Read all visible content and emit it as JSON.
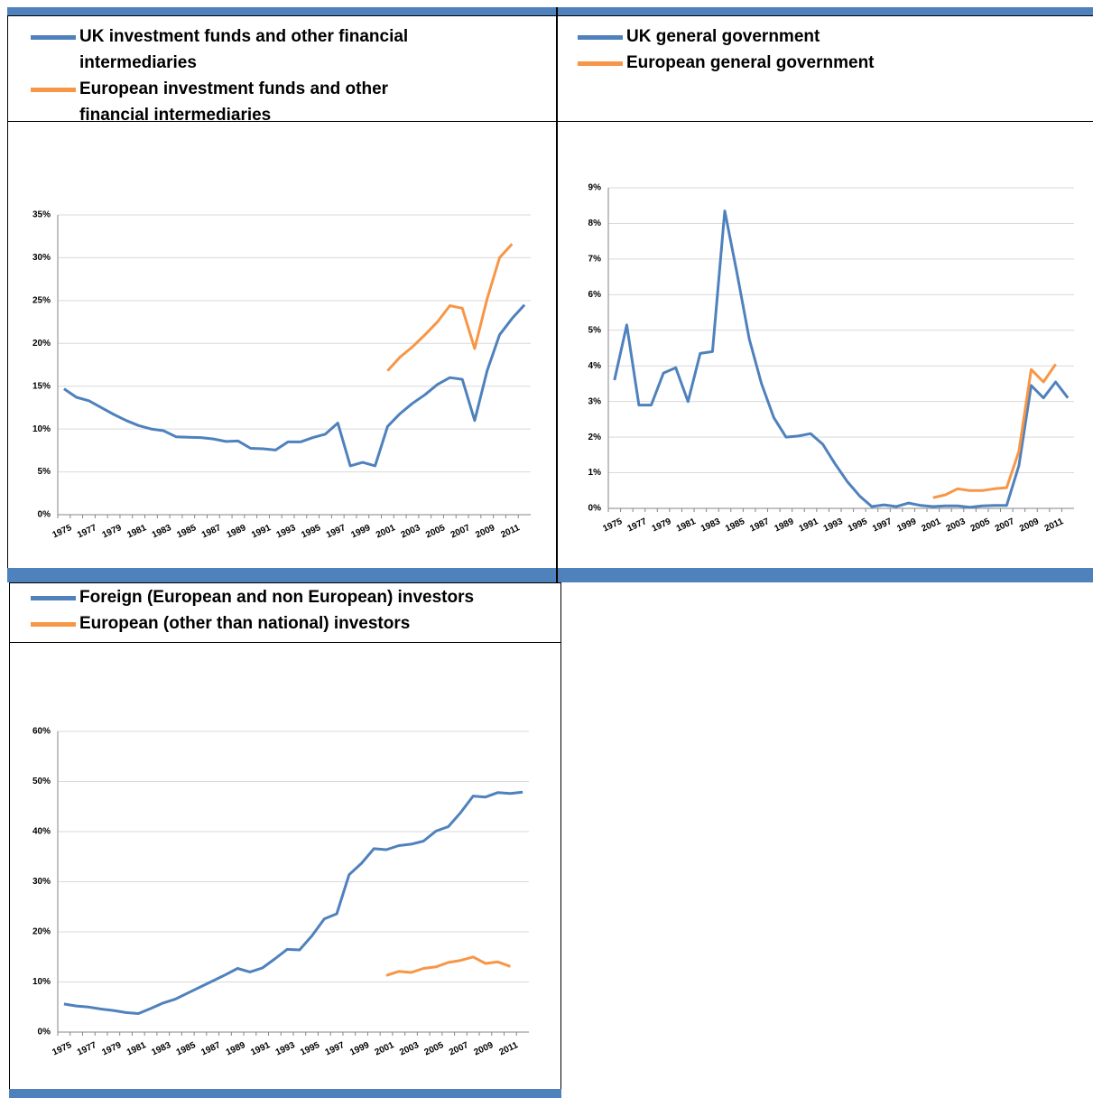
{
  "chart_data": [
    {
      "type": "line",
      "categories": [
        "1975",
        null,
        "1977",
        null,
        "1979",
        null,
        "1981",
        null,
        "1983",
        null,
        "1985",
        null,
        "1987",
        null,
        "1989",
        null,
        "1991",
        null,
        "1993",
        null,
        "1995",
        null,
        "1997",
        null,
        "1999",
        null,
        "2001",
        null,
        "2003",
        null,
        "2005",
        null,
        "2007",
        null,
        "2009",
        null,
        "2011",
        null
      ],
      "series": [
        {
          "name": "UK investment funds and other financial intermediaries",
          "color": "#4f81bd",
          "values": [
            14.7,
            13.7,
            13.3,
            12.5,
            11.7,
            11,
            10.4,
            10,
            9.8,
            9.1,
            9.05,
            9,
            8.85,
            8.55,
            8.6,
            7.75,
            7.7,
            7.55,
            8.5,
            8.5,
            9,
            9.4,
            10.7,
            5.7,
            6.1,
            5.7,
            10.3,
            11.8,
            13,
            14,
            15.2,
            16,
            15.8,
            11,
            16.8,
            21,
            22.9,
            24.5
          ]
        },
        {
          "name": "European investment funds and other financial intermediaries",
          "color": "#f79646",
          "values": [
            null,
            null,
            null,
            null,
            null,
            null,
            null,
            null,
            null,
            null,
            null,
            null,
            null,
            null,
            null,
            null,
            null,
            null,
            null,
            null,
            null,
            null,
            null,
            null,
            null,
            null,
            16.8,
            18.4,
            19.6,
            21,
            22.5,
            24.4,
            24.1,
            19.4,
            25.2,
            30,
            31.6,
            null
          ]
        }
      ],
      "ylim": [
        0,
        35
      ],
      "yticks": [
        {
          "value": 0,
          "label": "0%"
        },
        {
          "value": 5,
          "label": "5%"
        },
        {
          "value": 10,
          "label": "10%"
        },
        {
          "value": 15,
          "label": "15%"
        },
        {
          "value": 20,
          "label": "20%"
        },
        {
          "value": 25,
          "label": "25%"
        },
        {
          "value": 30,
          "label": "30%"
        },
        {
          "value": 35,
          "label": "35%"
        }
      ],
      "grid": true
    },
    {
      "type": "line",
      "categories": [
        "1975",
        null,
        "1977",
        null,
        "1979",
        null,
        "1981",
        null,
        "1983",
        null,
        "1985",
        null,
        "1987",
        null,
        "1989",
        null,
        "1991",
        null,
        "1993",
        null,
        "1995",
        null,
        "1997",
        null,
        "1999",
        null,
        "2001",
        null,
        "2003",
        null,
        "2005",
        null,
        "2007",
        null,
        "2009",
        null,
        "2011",
        null
      ],
      "series": [
        {
          "name": "UK general government",
          "color": "#4f81bd",
          "values": [
            3.6,
            5.15,
            2.9,
            2.9,
            3.8,
            3.95,
            3.0,
            4.35,
            4.4,
            8.35,
            6.6,
            4.75,
            3.5,
            2.55,
            2.0,
            2.03,
            2.1,
            1.8,
            1.25,
            0.75,
            0.35,
            0.05,
            0.1,
            0.05,
            0.15,
            0.08,
            0.05,
            0.07,
            0.07,
            0.03,
            0.07,
            0.08,
            0.08,
            1.2,
            3.45,
            3.1,
            3.55,
            3.1
          ]
        },
        {
          "name": "European general government",
          "color": "#f79646",
          "values": [
            null,
            null,
            null,
            null,
            null,
            null,
            null,
            null,
            null,
            null,
            null,
            null,
            null,
            null,
            null,
            null,
            null,
            null,
            null,
            null,
            null,
            null,
            null,
            null,
            null,
            null,
            0.3,
            0.38,
            0.55,
            0.5,
            0.5,
            0.55,
            0.58,
            1.6,
            3.9,
            3.55,
            4.05,
            null
          ]
        }
      ],
      "ylim": [
        0,
        9
      ],
      "yticks": [
        {
          "value": 0,
          "label": "0%"
        },
        {
          "value": 1,
          "label": "1%"
        },
        {
          "value": 2,
          "label": "2%"
        },
        {
          "value": 3,
          "label": "3%"
        },
        {
          "value": 4,
          "label": "4%"
        },
        {
          "value": 5,
          "label": "5%"
        },
        {
          "value": 6,
          "label": "6%"
        },
        {
          "value": 7,
          "label": "7%"
        },
        {
          "value": 8,
          "label": "8%"
        },
        {
          "value": 9,
          "label": "9%"
        }
      ],
      "grid": true
    },
    {
      "type": "line",
      "categories": [
        "1975",
        null,
        "1977",
        null,
        "1979",
        null,
        "1981",
        null,
        "1983",
        null,
        "1985",
        null,
        "1987",
        null,
        "1989",
        null,
        "1991",
        null,
        "1993",
        null,
        "1995",
        null,
        "1997",
        null,
        "1999",
        null,
        "2001",
        null,
        "2003",
        null,
        "2005",
        null,
        "2007",
        null,
        "2009",
        null,
        "2011",
        null
      ],
      "series": [
        {
          "name": "Foreign (European and non European) investors",
          "color": "#4f81bd",
          "values": [
            5.6,
            5.2,
            5.0,
            4.6,
            4.3,
            3.9,
            3.7,
            4.7,
            5.8,
            6.6,
            7.8,
            9.0,
            10.2,
            11.4,
            12.7,
            12.0,
            12.8,
            14.6,
            16.5,
            16.4,
            19.2,
            22.6,
            23.6,
            31.4,
            33.7,
            36.6,
            36.4,
            37.2,
            37.5,
            38.1,
            40.1,
            41.0,
            43.8,
            47.1,
            46.9,
            47.8,
            47.6,
            47.9
          ]
        },
        {
          "name": "European (other than national) investors",
          "color": "#f79646",
          "values": [
            null,
            null,
            null,
            null,
            null,
            null,
            null,
            null,
            null,
            null,
            null,
            null,
            null,
            null,
            null,
            null,
            null,
            null,
            null,
            null,
            null,
            null,
            null,
            null,
            null,
            null,
            11.3,
            12.1,
            11.9,
            12.7,
            13.0,
            13.9,
            14.3,
            15.0,
            13.7,
            14.0,
            13.1,
            null
          ]
        }
      ],
      "ylim": [
        0,
        60
      ],
      "yticks": [
        {
          "value": 0,
          "label": "0%"
        },
        {
          "value": 10,
          "label": "10%"
        },
        {
          "value": 20,
          "label": "20%"
        },
        {
          "value": 30,
          "label": "30%"
        },
        {
          "value": 40,
          "label": "40%"
        },
        {
          "value": 50,
          "label": "50%"
        },
        {
          "value": 60,
          "label": "60%"
        }
      ],
      "grid": true
    }
  ]
}
